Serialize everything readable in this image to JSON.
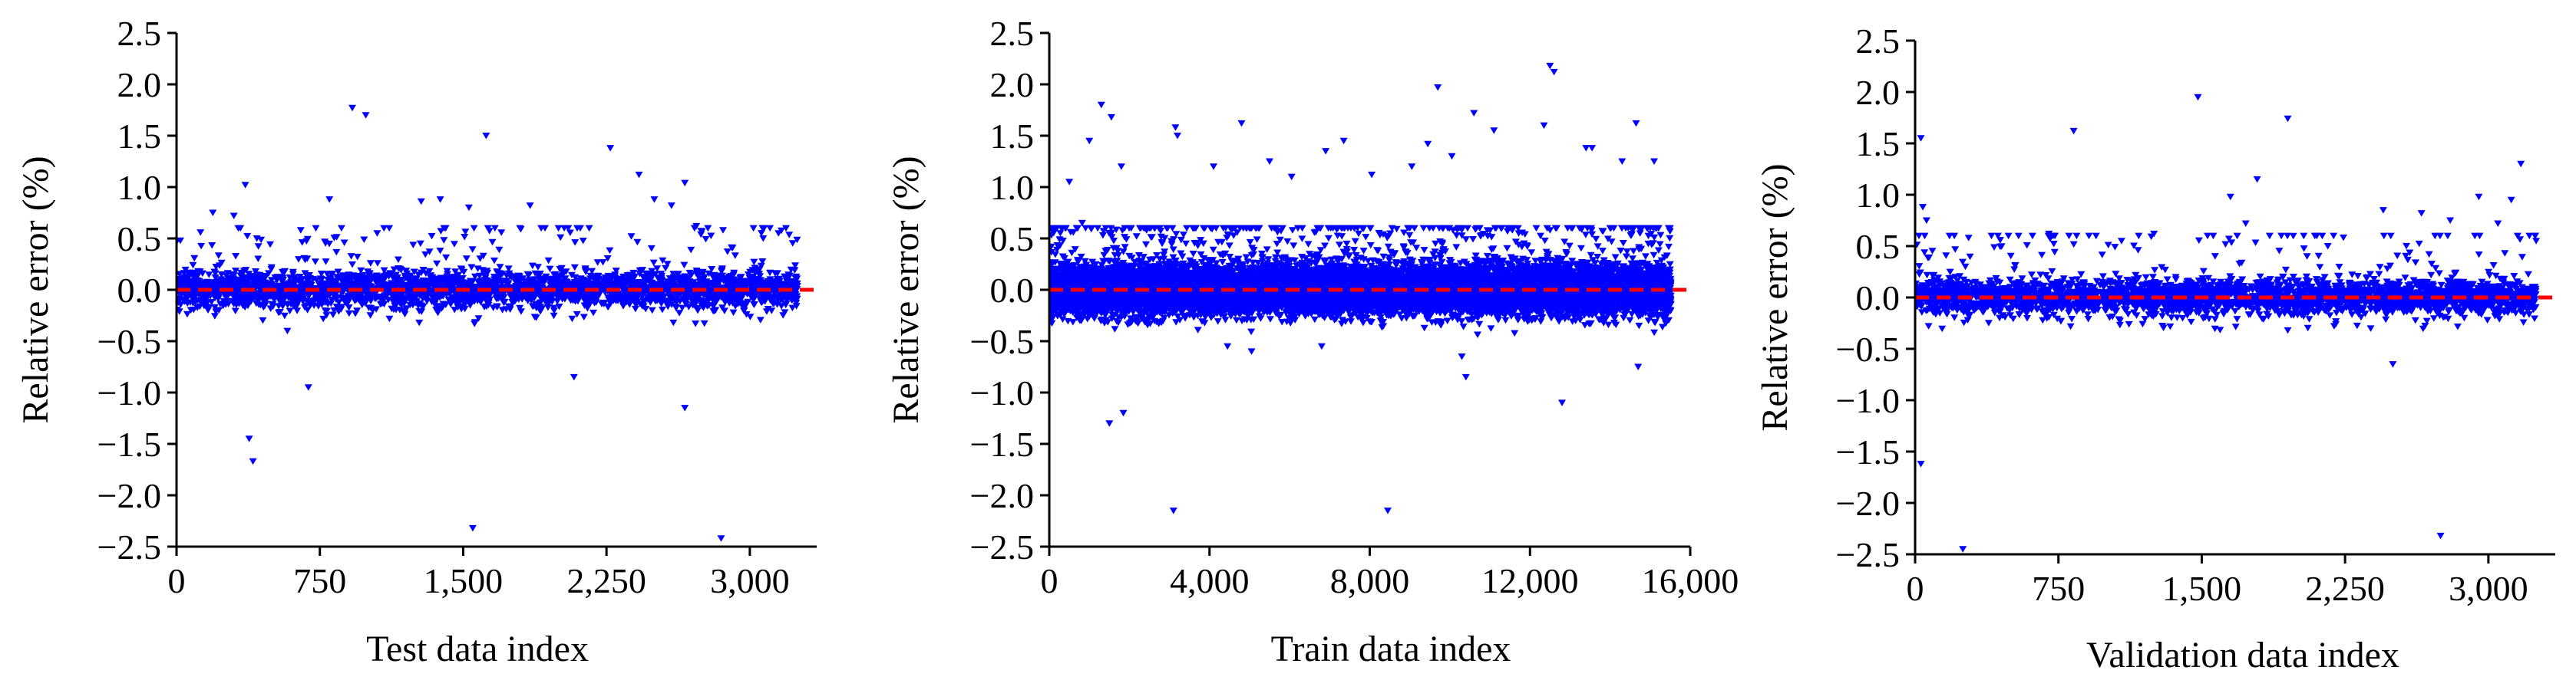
{
  "chart_data": [
    {
      "type": "scatter",
      "title": "",
      "xlabel": "Test data index",
      "ylabel": "Relative error (%)",
      "xlim": [
        0,
        3350
      ],
      "ylim": [
        -2.5,
        2.5
      ],
      "xticks": [
        0,
        750,
        1500,
        2250,
        3000
      ],
      "xtick_labels": [
        "0",
        "750",
        "1,500",
        "2,250",
        "3,000"
      ],
      "yticks": [
        -2.5,
        -2.0,
        -1.5,
        -1.0,
        -0.5,
        0.0,
        0.5,
        1.0,
        1.5,
        2.0,
        2.5
      ],
      "ytick_labels": [
        "−2.5",
        "−2.0",
        "−1.5",
        "−1.0",
        "−0.5",
        "0.0",
        "0.5",
        "1.0",
        "1.5",
        "2.0",
        "2.5"
      ],
      "reference_line_y": 0,
      "n_points": 3240,
      "bulk_spread": 0.16,
      "marker": "triangle-down",
      "marker_color": "#0000ff",
      "reference_line_color": "#ff0000",
      "outliers": [
        {
          "x": 20,
          "y": 0.48
        },
        {
          "x": 190,
          "y": 0.75
        },
        {
          "x": 300,
          "y": 0.72
        },
        {
          "x": 360,
          "y": 1.02
        },
        {
          "x": 420,
          "y": 0.5
        },
        {
          "x": 650,
          "y": 0.58
        },
        {
          "x": 800,
          "y": 0.88
        },
        {
          "x": 920,
          "y": 1.77
        },
        {
          "x": 990,
          "y": 1.7
        },
        {
          "x": 1050,
          "y": 0.55
        },
        {
          "x": 1280,
          "y": 0.86
        },
        {
          "x": 1380,
          "y": 0.88
        },
        {
          "x": 1530,
          "y": 0.8
        },
        {
          "x": 1620,
          "y": 1.5
        },
        {
          "x": 1850,
          "y": 0.82
        },
        {
          "x": 2050,
          "y": 0.6
        },
        {
          "x": 2270,
          "y": 1.38
        },
        {
          "x": 2380,
          "y": 0.52
        },
        {
          "x": 2420,
          "y": 1.12
        },
        {
          "x": 2500,
          "y": 0.88
        },
        {
          "x": 2590,
          "y": 0.82
        },
        {
          "x": 2660,
          "y": 1.04
        },
        {
          "x": 2720,
          "y": 0.62
        },
        {
          "x": 2860,
          "y": 0.58
        },
        {
          "x": 3070,
          "y": 0.5
        },
        {
          "x": 3150,
          "y": 0.55
        },
        {
          "x": 380,
          "y": -1.45
        },
        {
          "x": 400,
          "y": -1.67
        },
        {
          "x": 580,
          "y": -0.4
        },
        {
          "x": 690,
          "y": -0.95
        },
        {
          "x": 1270,
          "y": -0.32
        },
        {
          "x": 1550,
          "y": -2.32
        },
        {
          "x": 2080,
          "y": -0.85
        },
        {
          "x": 2600,
          "y": -0.32
        },
        {
          "x": 2660,
          "y": -1.15
        },
        {
          "x": 2850,
          "y": -2.42
        }
      ]
    },
    {
      "type": "scatter",
      "title": "",
      "xlabel": "Train data index",
      "ylabel": "Relative error (%)",
      "xlim": [
        0,
        16000
      ],
      "ylim": [
        -2.5,
        2.5
      ],
      "xticks": [
        0,
        4000,
        8000,
        12000,
        16000
      ],
      "xtick_labels": [
        "0",
        "4,000",
        "8,000",
        "12,000",
        "16,000"
      ],
      "yticks": [
        -2.5,
        -2.0,
        -1.5,
        -1.0,
        -0.5,
        0.0,
        0.5,
        1.0,
        1.5,
        2.0,
        2.5
      ],
      "ytick_labels": [
        "−2.5",
        "−2.0",
        "−1.5",
        "−1.0",
        "−0.5",
        "0.0",
        "0.5",
        "1.0",
        "1.5",
        "2.0",
        "2.5"
      ],
      "reference_line_y": 0,
      "n_points": 15200,
      "bulk_spread": 0.2,
      "marker": "triangle-down",
      "marker_color": "#0000ff",
      "reference_line_color": "#ff0000",
      "outliers": [
        {
          "x": 500,
          "y": 1.05
        },
        {
          "x": 820,
          "y": 0.65
        },
        {
          "x": 1000,
          "y": 1.45
        },
        {
          "x": 1300,
          "y": 1.8
        },
        {
          "x": 1550,
          "y": 1.68
        },
        {
          "x": 1800,
          "y": 1.2
        },
        {
          "x": 3150,
          "y": 1.58
        },
        {
          "x": 3200,
          "y": 1.5
        },
        {
          "x": 4100,
          "y": 1.2
        },
        {
          "x": 4800,
          "y": 1.62
        },
        {
          "x": 5500,
          "y": 1.25
        },
        {
          "x": 6050,
          "y": 1.1
        },
        {
          "x": 6900,
          "y": 1.35
        },
        {
          "x": 7350,
          "y": 1.45
        },
        {
          "x": 8050,
          "y": 1.12
        },
        {
          "x": 9050,
          "y": 1.2
        },
        {
          "x": 9450,
          "y": 1.42
        },
        {
          "x": 9700,
          "y": 1.97
        },
        {
          "x": 10050,
          "y": 1.3
        },
        {
          "x": 10600,
          "y": 1.72
        },
        {
          "x": 11100,
          "y": 1.55
        },
        {
          "x": 12350,
          "y": 1.6
        },
        {
          "x": 12500,
          "y": 2.18
        },
        {
          "x": 12600,
          "y": 2.12
        },
        {
          "x": 13400,
          "y": 1.38
        },
        {
          "x": 13550,
          "y": 1.38
        },
        {
          "x": 14300,
          "y": 1.25
        },
        {
          "x": 14650,
          "y": 1.62
        },
        {
          "x": 15100,
          "y": 1.25
        },
        {
          "x": 1500,
          "y": -1.3
        },
        {
          "x": 1850,
          "y": -1.2
        },
        {
          "x": 3100,
          "y": -2.15
        },
        {
          "x": 4450,
          "y": -0.55
        },
        {
          "x": 5050,
          "y": -0.6
        },
        {
          "x": 6800,
          "y": -0.55
        },
        {
          "x": 8450,
          "y": -2.15
        },
        {
          "x": 10300,
          "y": -0.65
        },
        {
          "x": 10400,
          "y": -0.85
        },
        {
          "x": 12800,
          "y": -1.1
        },
        {
          "x": 14700,
          "y": -0.75
        }
      ]
    },
    {
      "type": "scatter",
      "title": "",
      "xlabel": "Validation data index",
      "ylabel": "Relative error (%)",
      "xlim": [
        0,
        3350
      ],
      "ylim": [
        -2.5,
        2.5
      ],
      "xticks": [
        0,
        750,
        1500,
        2250,
        3000
      ],
      "xtick_labels": [
        "0",
        "750",
        "1,500",
        "2,250",
        "3,000"
      ],
      "yticks": [
        -2.5,
        -2.0,
        -1.5,
        -1.0,
        -0.5,
        0.0,
        0.5,
        1.0,
        1.5,
        2.0,
        2.5
      ],
      "ytick_labels": [
        "−2.5",
        "−2.0",
        "−1.5",
        "−1.0",
        "−0.5",
        "0.0",
        "0.5",
        "1.0",
        "1.5",
        "2.0",
        "2.5"
      ],
      "reference_line_y": 0,
      "n_points": 3240,
      "bulk_spread": 0.15,
      "marker": "triangle-down",
      "marker_color": "#0000ff",
      "reference_line_color": "#ff0000",
      "outliers": [
        {
          "x": 30,
          "y": 1.55
        },
        {
          "x": 40,
          "y": 0.88
        },
        {
          "x": 60,
          "y": 0.75
        },
        {
          "x": 280,
          "y": 0.58
        },
        {
          "x": 700,
          "y": 0.62
        },
        {
          "x": 830,
          "y": 1.62
        },
        {
          "x": 1080,
          "y": 0.55
        },
        {
          "x": 1250,
          "y": 0.62
        },
        {
          "x": 1480,
          "y": 1.95
        },
        {
          "x": 1560,
          "y": 0.6
        },
        {
          "x": 1650,
          "y": 0.98
        },
        {
          "x": 1730,
          "y": 0.72
        },
        {
          "x": 1790,
          "y": 1.15
        },
        {
          "x": 1950,
          "y": 1.74
        },
        {
          "x": 2160,
          "y": 0.5
        },
        {
          "x": 2450,
          "y": 0.85
        },
        {
          "x": 2650,
          "y": 0.82
        },
        {
          "x": 2800,
          "y": 0.75
        },
        {
          "x": 2950,
          "y": 0.98
        },
        {
          "x": 3050,
          "y": 0.72
        },
        {
          "x": 3120,
          "y": 0.95
        },
        {
          "x": 3170,
          "y": 1.3
        },
        {
          "x": 3250,
          "y": 0.55
        },
        {
          "x": 30,
          "y": -1.62
        },
        {
          "x": 250,
          "y": -2.45
        },
        {
          "x": 1950,
          "y": -0.32
        },
        {
          "x": 2500,
          "y": -0.65
        },
        {
          "x": 2750,
          "y": -2.32
        }
      ]
    }
  ]
}
